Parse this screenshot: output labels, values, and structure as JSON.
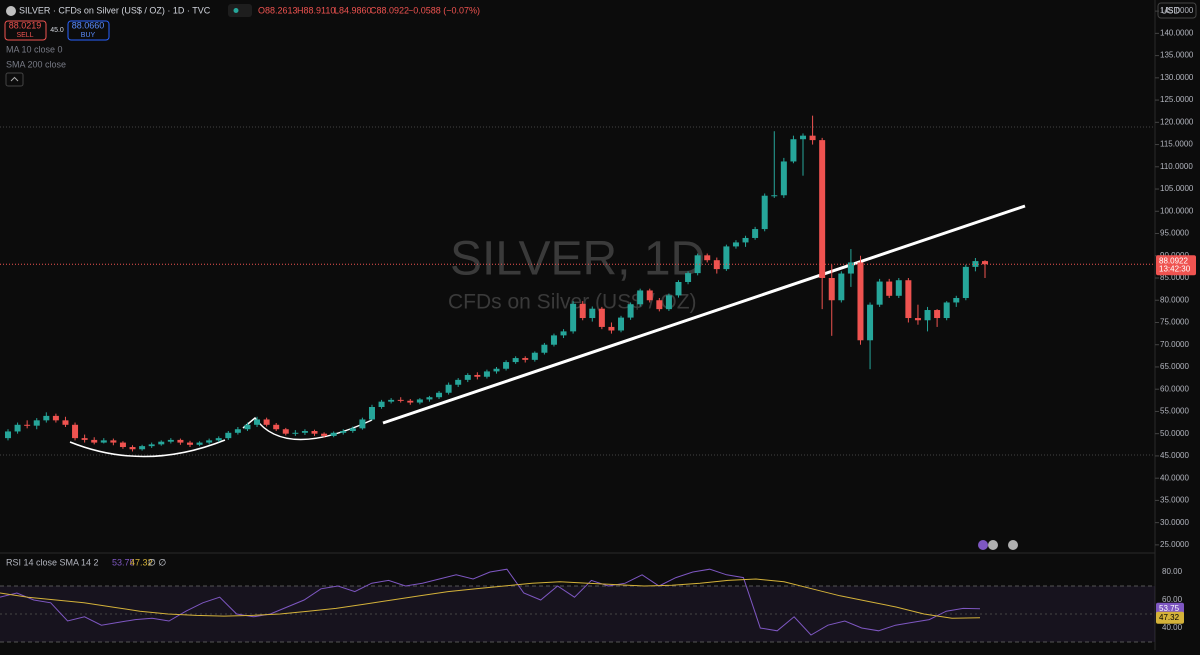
{
  "header": {
    "symbol": "SILVER · CFDs on Silver (US$ / OZ) · 1D · TVC",
    "open": "O88.2613",
    "high": "H88.9110",
    "low": "L84.9860",
    "close": "C88.0922",
    "change": "−0.0588 (−0.07%)",
    "sell_price": "88.0219",
    "sell": "SELL",
    "spread": "45.0",
    "buy_price": "88.0660",
    "buy": "BUY",
    "indicator1": "MA 10 close 0",
    "indicator2": "SMA 200 close",
    "currency": "USD"
  },
  "watermark": {
    "title": "SILVER, 1D",
    "subtitle": "CFDs on Silver (US$ / OZ)"
  },
  "price_tag": {
    "price": "88.0922",
    "countdown": "13:42:30"
  },
  "chart_data": {
    "type": "candlestick",
    "up_color": "#26a69a",
    "down_color": "#ef5350",
    "ylim": [
      23.4,
      147.5
    ],
    "yticks": [
      {
        "value": 25,
        "label": "25.0000"
      },
      {
        "value": 30,
        "label": "30.0000"
      },
      {
        "value": 35,
        "label": "35.0000"
      },
      {
        "value": 40,
        "label": "40.0000"
      },
      {
        "value": 45,
        "label": "45.0000"
      },
      {
        "value": 50,
        "label": "50.0000"
      },
      {
        "value": 55,
        "label": "55.0000"
      },
      {
        "value": 60,
        "label": "60.0000"
      },
      {
        "value": 65,
        "label": "65.0000"
      },
      {
        "value": 70,
        "label": "70.0000"
      },
      {
        "value": 75,
        "label": "75.0000"
      },
      {
        "value": 80,
        "label": "80.0000"
      },
      {
        "value": 85,
        "label": "85.0000"
      },
      {
        "value": 90,
        "label": "90.0000"
      },
      {
        "value": 95,
        "label": "95.0000"
      },
      {
        "value": 100,
        "label": "100.0000"
      },
      {
        "value": 105,
        "label": "105.0000"
      },
      {
        "value": 110,
        "label": "110.0000"
      },
      {
        "value": 115,
        "label": "115.0000"
      },
      {
        "value": 120,
        "label": "120.0000"
      },
      {
        "value": 125,
        "label": "125.0000"
      },
      {
        "value": 130,
        "label": "130.0000"
      },
      {
        "value": 135,
        "label": "135.0000"
      },
      {
        "value": 140,
        "label": "140.0000"
      },
      {
        "value": 145,
        "label": "145.0000"
      }
    ],
    "candles": [
      [
        49,
        51,
        48.5,
        50.5
      ],
      [
        50.5,
        52.5,
        50,
        52
      ],
      [
        52,
        53,
        51.2,
        51.8
      ],
      [
        51.8,
        53.5,
        51,
        53
      ],
      [
        53,
        54.8,
        52.5,
        54
      ],
      [
        54,
        54.5,
        52.5,
        53
      ],
      [
        53,
        53.8,
        51.5,
        52
      ],
      [
        52,
        52.5,
        48.5,
        49
      ],
      [
        49,
        49.8,
        48,
        48.6
      ],
      [
        48.6,
        49.2,
        47.6,
        48
      ],
      [
        48,
        49,
        47.8,
        48.5
      ],
      [
        48.5,
        48.9,
        47.4,
        48
      ],
      [
        48,
        48.3,
        46.6,
        47
      ],
      [
        47,
        47.4,
        46,
        46.5
      ],
      [
        46.5,
        47.5,
        46.2,
        47.2
      ],
      [
        47.2,
        48,
        46.8,
        47.6
      ],
      [
        47.6,
        48.5,
        47.3,
        48.2
      ],
      [
        48.2,
        49,
        47.8,
        48.6
      ],
      [
        48.6,
        48.9,
        47.5,
        48
      ],
      [
        48,
        48.4,
        47,
        47.5
      ],
      [
        47.5,
        48.3,
        47.2,
        48
      ],
      [
        48,
        48.9,
        47.6,
        48.5
      ],
      [
        48.5,
        49.4,
        48.1,
        49
      ],
      [
        49,
        50.6,
        48.6,
        50.2
      ],
      [
        50.2,
        51.5,
        49.8,
        51
      ],
      [
        51,
        52.5,
        50.6,
        52
      ],
      [
        52,
        53.8,
        51.5,
        53.2
      ],
      [
        53.2,
        53.6,
        51.6,
        52
      ],
      [
        52,
        52.4,
        50.6,
        51
      ],
      [
        51,
        51.3,
        49.6,
        50
      ],
      [
        50,
        50.8,
        49.5,
        50.2
      ],
      [
        50.2,
        51,
        49.7,
        50.6
      ],
      [
        50.6,
        50.9,
        49.5,
        50
      ],
      [
        50,
        50.3,
        49.1,
        49.5
      ],
      [
        49.5,
        50.5,
        49.2,
        50.2
      ],
      [
        50.2,
        51,
        49.8,
        50.6
      ],
      [
        50.6,
        51.6,
        50.2,
        51.2
      ],
      [
        51.2,
        53.6,
        50.9,
        53.2
      ],
      [
        53.2,
        56.5,
        53,
        56
      ],
      [
        56,
        57.6,
        55.6,
        57.2
      ],
      [
        57.2,
        58,
        56.8,
        57.6
      ],
      [
        57.6,
        58.2,
        57,
        57.4
      ],
      [
        57.4,
        57.8,
        56.5,
        57
      ],
      [
        57,
        58,
        56.6,
        57.7
      ],
      [
        57.7,
        58.5,
        57.2,
        58.2
      ],
      [
        58.2,
        59.6,
        57.8,
        59.2
      ],
      [
        59.2,
        61.5,
        58.8,
        61
      ],
      [
        61,
        62.5,
        60.5,
        62.1
      ],
      [
        62.1,
        63.6,
        61.6,
        63.2
      ],
      [
        63.2,
        63.8,
        62.2,
        62.8
      ],
      [
        62.8,
        64.4,
        62.4,
        64
      ],
      [
        64,
        65,
        63.5,
        64.6
      ],
      [
        64.6,
        66.5,
        64.2,
        66.1
      ],
      [
        66.1,
        67.4,
        65.7,
        67
      ],
      [
        67,
        67.4,
        66,
        66.6
      ],
      [
        66.6,
        68.5,
        66.2,
        68.2
      ],
      [
        68.2,
        70.4,
        67.8,
        70
      ],
      [
        70,
        72.5,
        69.6,
        72.1
      ],
      [
        72.1,
        73.5,
        71.5,
        73
      ],
      [
        73,
        79.8,
        72.5,
        79.2
      ],
      [
        79.2,
        79.8,
        75.5,
        76
      ],
      [
        76,
        78.6,
        75.2,
        78.1
      ],
      [
        78.1,
        78.5,
        73.5,
        74
      ],
      [
        74,
        75,
        72.5,
        73.2
      ],
      [
        73.2,
        76.5,
        72.8,
        76.1
      ],
      [
        76.1,
        79.5,
        75.6,
        79.1
      ],
      [
        79.1,
        82.6,
        78.6,
        82.2
      ],
      [
        82.2,
        82.6,
        79.5,
        80
      ],
      [
        80,
        80.5,
        77.5,
        78
      ],
      [
        78,
        81.5,
        77.6,
        81.1
      ],
      [
        81.1,
        84.5,
        80.6,
        84.1
      ],
      [
        84.1,
        86.5,
        83.6,
        86.1
      ],
      [
        86.1,
        90.5,
        85.6,
        90.1
      ],
      [
        90.1,
        90.5,
        88.5,
        89
      ],
      [
        89,
        89.6,
        86,
        87
      ],
      [
        87,
        92.5,
        86.6,
        92.1
      ],
      [
        92.1,
        93.5,
        91.6,
        93
      ],
      [
        93,
        94.5,
        92,
        94
      ],
      [
        94,
        96.5,
        93.6,
        96
      ],
      [
        96,
        104,
        95.5,
        103.5
      ],
      [
        103.5,
        118,
        103,
        103.6
      ],
      [
        103.6,
        112,
        103,
        111.2
      ],
      [
        111.2,
        117,
        110.8,
        116.2
      ],
      [
        116.2,
        117.5,
        108,
        117
      ],
      [
        117,
        121.5,
        115,
        116
      ],
      [
        116,
        116.5,
        78,
        85
      ],
      [
        85,
        88,
        72,
        80
      ],
      [
        80,
        86.5,
        79.5,
        86
      ],
      [
        86,
        91.5,
        83,
        88.5
      ],
      [
        88.5,
        90,
        70,
        71
      ],
      [
        71,
        79.5,
        64.5,
        79
      ],
      [
        79,
        84.8,
        78.5,
        84.2
      ],
      [
        84.2,
        84.8,
        80.5,
        81
      ],
      [
        81,
        85,
        80.5,
        84.5
      ],
      [
        84.5,
        85,
        75,
        76
      ],
      [
        76,
        79,
        74.5,
        75.5
      ],
      [
        75.5,
        78.5,
        73,
        77.8
      ],
      [
        77.8,
        78,
        74,
        76
      ],
      [
        76,
        79.8,
        75.5,
        79.5
      ],
      [
        79.5,
        81,
        78.5,
        80.5
      ],
      [
        80.5,
        88,
        80,
        87.5
      ],
      [
        87.5,
        89.5,
        86.5,
        88.8
      ],
      [
        88.8,
        89,
        85,
        88.09
      ]
    ]
  },
  "rsi": {
    "type": "line",
    "label": "RSI 14 close SMA 14 2",
    "extra": "∅ ∅",
    "ylim": [
      25.7,
      91.4
    ],
    "yticks": [
      {
        "value": 80,
        "label": "80.00"
      },
      {
        "value": 60,
        "label": "60.00"
      },
      {
        "value": 40,
        "label": "40.00"
      }
    ],
    "series": [
      {
        "name": "RSI",
        "color": "#7e57c2",
        "values": [
          62,
          65,
          60,
          58,
          45,
          48,
          42,
          44,
          46,
          47,
          45,
          52,
          58,
          62,
          50,
          48,
          50,
          55,
          60,
          68,
          70,
          66,
          72,
          74,
          70,
          72,
          75,
          78,
          75,
          80,
          82,
          65,
          60,
          70,
          62,
          74,
          70,
          72,
          78,
          70,
          76,
          80,
          82,
          78,
          76,
          40,
          38,
          48,
          35,
          42,
          45,
          40,
          38,
          42,
          44,
          46,
          52,
          54,
          53.75
        ]
      },
      {
        "name": "RSI-based MA",
        "color": "#d4b23a",
        "values": [
          65,
          62,
          60,
          58,
          55,
          52,
          50,
          49,
          48.5,
          49,
          50,
          52,
          54,
          57,
          60,
          63,
          66,
          68,
          70,
          72,
          73,
          72,
          71,
          70,
          70.5,
          72,
          74,
          75,
          73,
          68,
          63,
          59,
          55,
          50,
          47,
          47.32
        ]
      }
    ]
  }
}
